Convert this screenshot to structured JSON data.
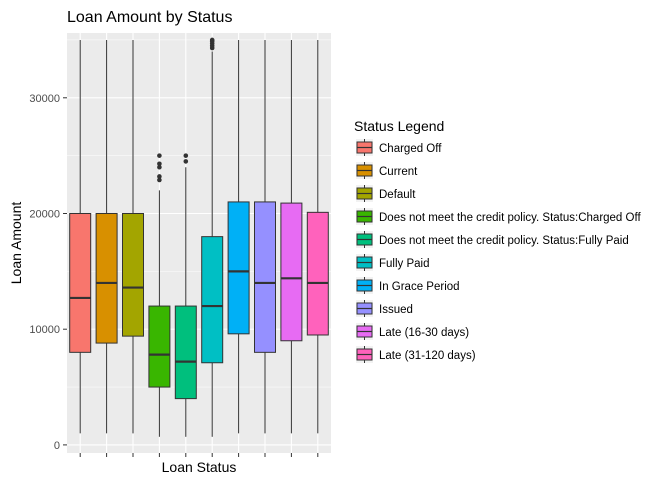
{
  "chart_data": {
    "type": "box",
    "title": "Loan Amount by Status",
    "xlabel": "Loan Status",
    "ylabel": "Loan Amount",
    "ylim": [
      -700,
      35600
    ],
    "yticks": [
      0,
      10000,
      20000,
      30000
    ],
    "ytick_labels": [
      "0",
      "10000",
      "20000",
      "30000"
    ],
    "grid": true,
    "legend": {
      "title": "Status Legend",
      "position": "right"
    },
    "series": [
      {
        "name": "Charged Off",
        "color": "#F8766D",
        "whisker_low": 1000,
        "q1": 8000,
        "median": 12700,
        "q3": 20000,
        "whisker_high": 35000,
        "outliers": []
      },
      {
        "name": "Current",
        "color": "#D89000",
        "whisker_low": 1000,
        "q1": 8800,
        "median": 14000,
        "q3": 20000,
        "whisker_high": 35000,
        "outliers": []
      },
      {
        "name": "Default",
        "color": "#A3A500",
        "whisker_low": 1000,
        "q1": 9400,
        "median": 13600,
        "q3": 20000,
        "whisker_high": 35000,
        "outliers": []
      },
      {
        "name": "Does not meet the credit policy. Status:Charged Off",
        "color": "#39B600",
        "whisker_low": 700,
        "q1": 5000,
        "median": 7800,
        "q3": 12000,
        "whisker_high": 22000,
        "outliers": [
          22900,
          23200,
          24000,
          24300,
          25000
        ]
      },
      {
        "name": "Does not meet the credit policy. Status:Fully Paid",
        "color": "#00BF7D",
        "whisker_low": 700,
        "q1": 4000,
        "median": 7200,
        "q3": 12000,
        "whisker_high": 24000,
        "outliers": [
          24500,
          25000
        ]
      },
      {
        "name": "Fully Paid",
        "color": "#00BFC4",
        "whisker_low": 700,
        "q1": 7100,
        "median": 12000,
        "q3": 18000,
        "whisker_high": 34000,
        "outliers": [
          34300,
          34500,
          34700,
          34900,
          35000
        ]
      },
      {
        "name": "In Grace Period",
        "color": "#00B0F6",
        "whisker_low": 1000,
        "q1": 9600,
        "median": 15000,
        "q3": 21000,
        "whisker_high": 35000,
        "outliers": []
      },
      {
        "name": "Issued",
        "color": "#9590FF",
        "whisker_low": 1000,
        "q1": 8000,
        "median": 14000,
        "q3": 21000,
        "whisker_high": 35000,
        "outliers": []
      },
      {
        "name": "Late (16-30 days)",
        "color": "#E76BF3",
        "whisker_low": 1000,
        "q1": 9000,
        "median": 14400,
        "q3": 20900,
        "whisker_high": 35000,
        "outliers": []
      },
      {
        "name": "Late (31-120 days)",
        "color": "#FF62BC",
        "whisker_low": 1000,
        "q1": 9500,
        "median": 14000,
        "q3": 20100,
        "whisker_high": 35000,
        "outliers": []
      }
    ]
  }
}
